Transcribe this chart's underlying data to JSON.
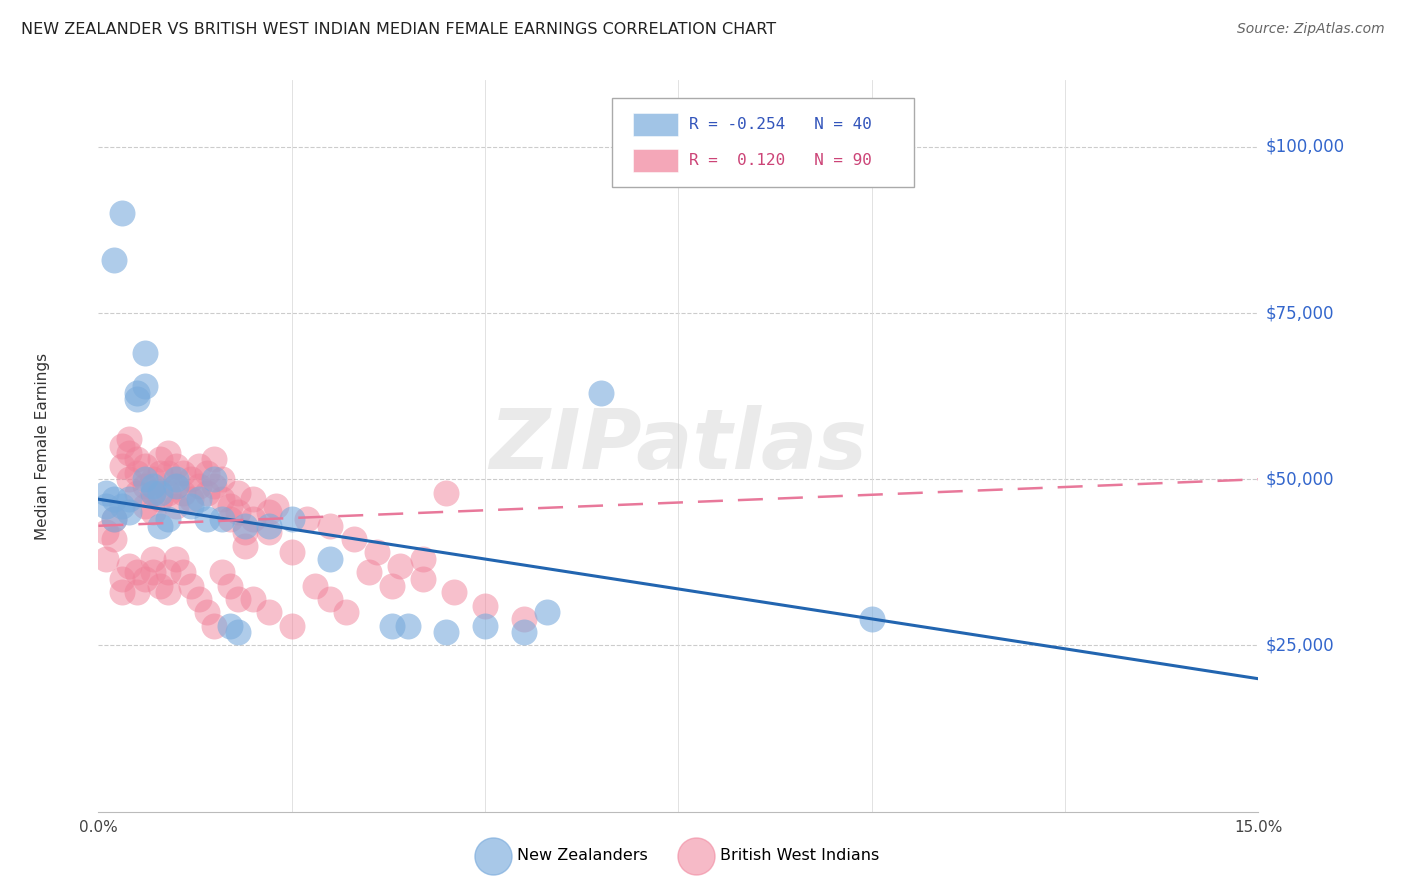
{
  "title": "NEW ZEALANDER VS BRITISH WEST INDIAN MEDIAN FEMALE EARNINGS CORRELATION CHART",
  "source": "Source: ZipAtlas.com",
  "ylabel": "Median Female Earnings",
  "ytick_labels": [
    "$25,000",
    "$50,000",
    "$75,000",
    "$100,000"
  ],
  "ytick_values": [
    25000,
    50000,
    75000,
    100000
  ],
  "xlim": [
    0.0,
    0.15
  ],
  "ylim": [
    0,
    110000
  ],
  "nz_color": "#7aabdc",
  "bwi_color": "#f0829a",
  "nz_line_color": "#2265b0",
  "bwi_line_color": "#e8789a",
  "watermark": "ZIPatlas",
  "nz_line": [
    47000,
    20000
  ],
  "bwi_line": [
    43000,
    50000
  ],
  "nz_scatter_x": [
    0.001,
    0.001,
    0.002,
    0.002,
    0.003,
    0.004,
    0.004,
    0.005,
    0.005,
    0.006,
    0.006,
    0.007,
    0.007,
    0.008,
    0.008,
    0.009,
    0.01,
    0.01,
    0.012,
    0.013,
    0.015,
    0.016,
    0.017,
    0.018,
    0.022,
    0.025,
    0.03,
    0.04,
    0.045,
    0.05,
    0.055,
    0.065,
    0.1,
    0.002,
    0.003,
    0.006,
    0.058,
    0.014,
    0.019,
    0.038
  ],
  "nz_scatter_y": [
    46000,
    48000,
    47000,
    44000,
    46000,
    47000,
    45000,
    63000,
    62000,
    50000,
    69000,
    49000,
    48000,
    48000,
    43000,
    44000,
    50000,
    49000,
    46000,
    47000,
    50000,
    44000,
    28000,
    27000,
    43000,
    44000,
    38000,
    28000,
    27000,
    28000,
    27000,
    63000,
    29000,
    83000,
    90000,
    64000,
    30000,
    44000,
    43000,
    28000
  ],
  "bwi_scatter_x": [
    0.001,
    0.001,
    0.002,
    0.002,
    0.003,
    0.003,
    0.004,
    0.004,
    0.004,
    0.005,
    0.005,
    0.005,
    0.006,
    0.006,
    0.006,
    0.007,
    0.007,
    0.007,
    0.008,
    0.008,
    0.008,
    0.009,
    0.009,
    0.009,
    0.01,
    0.01,
    0.01,
    0.011,
    0.011,
    0.012,
    0.012,
    0.013,
    0.013,
    0.014,
    0.014,
    0.015,
    0.015,
    0.016,
    0.016,
    0.017,
    0.017,
    0.018,
    0.018,
    0.019,
    0.019,
    0.02,
    0.02,
    0.022,
    0.022,
    0.023,
    0.003,
    0.003,
    0.004,
    0.005,
    0.005,
    0.006,
    0.007,
    0.007,
    0.008,
    0.009,
    0.009,
    0.01,
    0.011,
    0.012,
    0.013,
    0.014,
    0.015,
    0.016,
    0.017,
    0.018,
    0.02,
    0.022,
    0.025,
    0.028,
    0.03,
    0.032,
    0.035,
    0.038,
    0.042,
    0.045,
    0.025,
    0.027,
    0.03,
    0.033,
    0.036,
    0.039,
    0.042,
    0.046,
    0.05,
    0.055
  ],
  "bwi_scatter_y": [
    42000,
    38000,
    44000,
    41000,
    55000,
    52000,
    56000,
    54000,
    50000,
    53000,
    51000,
    48000,
    52000,
    49000,
    46000,
    50000,
    48000,
    45000,
    53000,
    51000,
    47000,
    54000,
    51000,
    48000,
    52000,
    49000,
    46000,
    51000,
    48000,
    50000,
    47000,
    52000,
    49000,
    51000,
    48000,
    53000,
    49000,
    50000,
    47000,
    46000,
    44000,
    48000,
    45000,
    42000,
    40000,
    47000,
    44000,
    45000,
    42000,
    46000,
    35000,
    33000,
    37000,
    36000,
    33000,
    35000,
    38000,
    36000,
    34000,
    36000,
    33000,
    38000,
    36000,
    34000,
    32000,
    30000,
    28000,
    36000,
    34000,
    32000,
    32000,
    30000,
    28000,
    34000,
    32000,
    30000,
    36000,
    34000,
    38000,
    48000,
    39000,
    44000,
    43000,
    41000,
    39000,
    37000,
    35000,
    33000,
    31000,
    29000
  ]
}
